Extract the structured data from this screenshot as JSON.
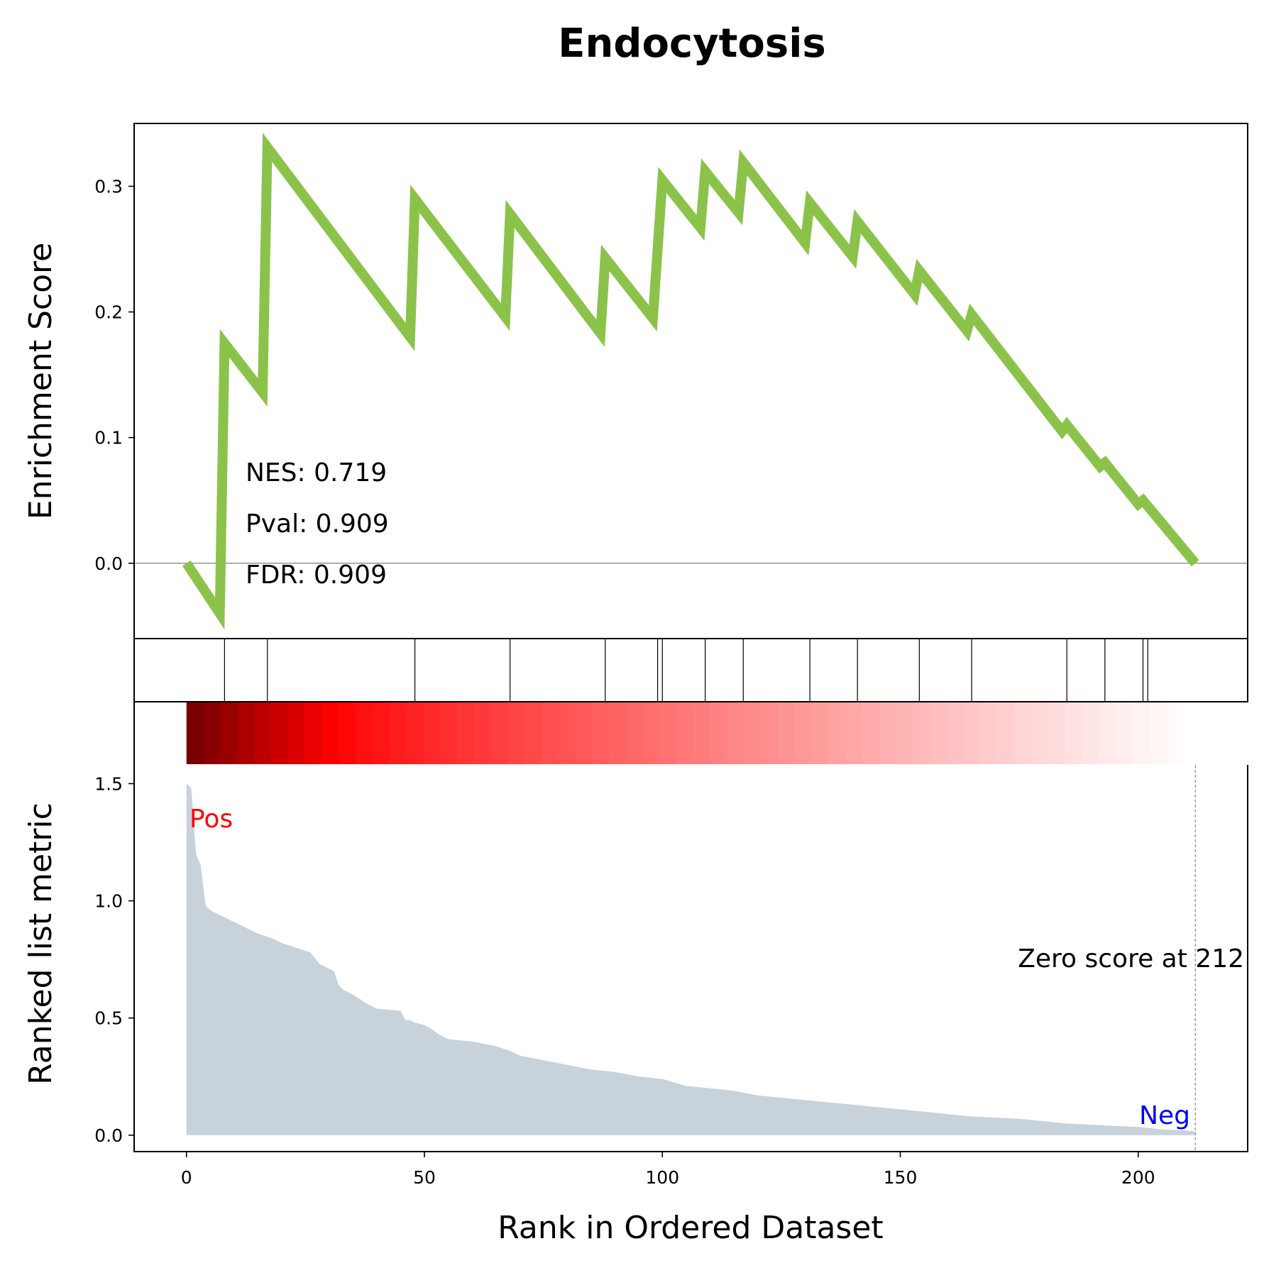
{
  "chart_data": {
    "type": "line",
    "title": "Endocytosis",
    "xlabel": "Rank in Ordered Dataset",
    "es_panel": {
      "ylabel": "Enrichment Score",
      "ylim": [
        -0.06,
        0.35
      ],
      "yticks": [
        0.0,
        0.1,
        0.2,
        0.3
      ],
      "ytick_labels": [
        "0.0",
        "0.1",
        "0.2",
        "0.3"
      ],
      "line_color": "#8bc34a",
      "baseline": 0.0,
      "x": [
        0,
        7,
        8,
        16,
        17,
        47,
        48,
        67,
        68,
        87,
        88,
        98,
        100,
        108,
        109,
        116,
        117,
        130,
        131,
        140,
        141,
        153,
        154,
        164,
        165,
        184,
        185,
        192,
        193,
        200,
        201,
        212
      ],
      "y": [
        0.0,
        -0.04,
        0.175,
        0.136,
        0.331,
        0.18,
        0.29,
        0.196,
        0.278,
        0.183,
        0.243,
        0.195,
        0.305,
        0.267,
        0.312,
        0.279,
        0.319,
        0.255,
        0.287,
        0.244,
        0.272,
        0.214,
        0.233,
        0.185,
        0.198,
        0.105,
        0.11,
        0.077,
        0.08,
        0.047,
        0.05,
        0.0
      ],
      "stats": [
        "NES: 0.719",
        "Pval: 0.909",
        "FDR: 0.909"
      ]
    },
    "hits_panel": {
      "positions": [
        8,
        17,
        48,
        68,
        88,
        99,
        100,
        109,
        117,
        131,
        141,
        154,
        165,
        185,
        193,
        201,
        202
      ],
      "color": "#000000"
    },
    "heat_strip": {
      "from_color": "#7a0000",
      "mid_color": "#ff0000",
      "to_color": "#ffffff"
    },
    "rank_panel": {
      "ylabel": "Ranked list metric",
      "ylim": [
        -0.07,
        1.58
      ],
      "yticks": [
        0.0,
        0.5,
        1.0,
        1.5
      ],
      "ytick_labels": [
        "0.0",
        "0.5",
        "1.0",
        "1.5"
      ],
      "fill_color": "#c8d2db",
      "x": [
        0,
        1,
        2,
        3,
        4,
        5,
        6,
        8,
        10,
        12,
        15,
        18,
        20,
        23,
        26,
        28,
        30,
        31,
        32,
        33,
        35,
        38,
        40,
        45,
        46,
        47,
        48,
        50,
        51,
        53,
        55,
        60,
        65,
        68,
        70,
        75,
        80,
        85,
        90,
        95,
        100,
        105,
        110,
        115,
        120,
        125,
        130,
        135,
        140,
        145,
        150,
        155,
        160,
        165,
        170,
        175,
        180,
        185,
        190,
        195,
        200,
        205,
        210,
        212
      ],
      "y": [
        1.5,
        1.48,
        1.2,
        1.15,
        0.98,
        0.96,
        0.95,
        0.93,
        0.91,
        0.89,
        0.86,
        0.84,
        0.82,
        0.8,
        0.78,
        0.73,
        0.71,
        0.7,
        0.64,
        0.62,
        0.6,
        0.56,
        0.54,
        0.53,
        0.49,
        0.49,
        0.48,
        0.47,
        0.46,
        0.43,
        0.41,
        0.4,
        0.38,
        0.36,
        0.34,
        0.32,
        0.3,
        0.28,
        0.27,
        0.25,
        0.24,
        0.21,
        0.2,
        0.19,
        0.17,
        0.16,
        0.15,
        0.14,
        0.13,
        0.12,
        0.11,
        0.1,
        0.09,
        0.08,
        0.075,
        0.07,
        0.06,
        0.05,
        0.045,
        0.04,
        0.035,
        0.025,
        0.02,
        0.015
      ],
      "pos_label": "Pos",
      "pos_color": "#ff0000",
      "neg_label": "Neg",
      "neg_color": "#0000ff",
      "zero_score_text": "Zero score at 212",
      "zero_rank": 212
    },
    "xlim": [
      -11,
      223
    ],
    "xticks": [
      0,
      50,
      100,
      150,
      200
    ],
    "xtick_labels": [
      "0",
      "50",
      "100",
      "150",
      "200"
    ]
  }
}
